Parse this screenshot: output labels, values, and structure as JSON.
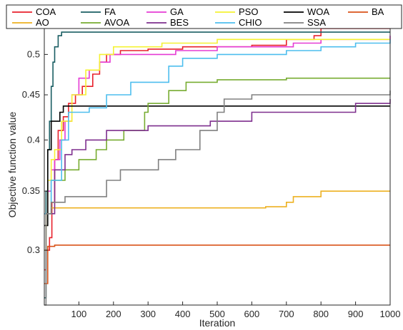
{
  "chart_data": {
    "type": "line",
    "xlabel": "Iteration",
    "ylabel": "Objective function value",
    "xlim": [
      0,
      1000
    ],
    "ylim": [
      0.26,
      0.54
    ],
    "y_scale": "log",
    "x_ticks": [
      100,
      200,
      300,
      400,
      500,
      600,
      700,
      800,
      900,
      1000
    ],
    "y_ticks": [
      0.3,
      0.35,
      0.4,
      0.45,
      0.5
    ],
    "grid": false,
    "legend_position": "top",
    "series": [
      {
        "name": "COA",
        "color": "#e8202b",
        "points": [
          [
            0,
            0.285
          ],
          [
            5,
            0.3
          ],
          [
            15,
            0.31
          ],
          [
            22,
            0.34
          ],
          [
            30,
            0.38
          ],
          [
            40,
            0.41
          ],
          [
            55,
            0.425
          ],
          [
            70,
            0.44
          ],
          [
            90,
            0.45
          ],
          [
            110,
            0.46
          ],
          [
            140,
            0.475
          ],
          [
            160,
            0.49
          ],
          [
            180,
            0.5
          ],
          [
            220,
            0.505
          ],
          [
            300,
            0.507
          ],
          [
            400,
            0.51
          ],
          [
            500,
            0.51
          ],
          [
            600,
            0.512
          ],
          [
            700,
            0.52
          ],
          [
            780,
            0.525
          ],
          [
            800,
            0.535
          ],
          [
            920,
            0.535
          ],
          [
            1000,
            0.54
          ]
        ]
      },
      {
        "name": "FA",
        "color": "#1a5e63",
        "points": [
          [
            0,
            0.265
          ],
          [
            5,
            0.35
          ],
          [
            10,
            0.39
          ],
          [
            15,
            0.42
          ],
          [
            20,
            0.46
          ],
          [
            25,
            0.49
          ],
          [
            30,
            0.51
          ],
          [
            40,
            0.525
          ],
          [
            50,
            0.53
          ],
          [
            1000,
            0.53
          ]
        ]
      },
      {
        "name": "GA",
        "color": "#e53bd4",
        "points": [
          [
            0,
            0.33
          ],
          [
            10,
            0.35
          ],
          [
            20,
            0.37
          ],
          [
            30,
            0.38
          ],
          [
            45,
            0.4
          ],
          [
            60,
            0.42
          ],
          [
            80,
            0.45
          ],
          [
            100,
            0.47
          ],
          [
            130,
            0.48
          ],
          [
            160,
            0.49
          ],
          [
            190,
            0.5
          ],
          [
            380,
            0.505
          ],
          [
            500,
            0.51
          ],
          [
            720,
            0.515
          ],
          [
            800,
            0.52
          ],
          [
            1000,
            0.525
          ]
        ]
      },
      {
        "name": "PSO",
        "color": "#f5f233",
        "points": [
          [
            0,
            0.33
          ],
          [
            10,
            0.36
          ],
          [
            20,
            0.38
          ],
          [
            30,
            0.39
          ],
          [
            50,
            0.42
          ],
          [
            80,
            0.45
          ],
          [
            120,
            0.48
          ],
          [
            160,
            0.5
          ],
          [
            200,
            0.51
          ],
          [
            340,
            0.515
          ],
          [
            500,
            0.52
          ],
          [
            1000,
            0.52
          ]
        ]
      },
      {
        "name": "WOA",
        "color": "#000000",
        "points": [
          [
            0,
            0.32
          ],
          [
            10,
            0.39
          ],
          [
            20,
            0.42
          ],
          [
            45,
            0.43
          ],
          [
            55,
            0.437
          ],
          [
            1000,
            0.437
          ]
        ]
      },
      {
        "name": "BA",
        "color": "#d95319",
        "points": [
          [
            0,
            0.275
          ],
          [
            10,
            0.303
          ],
          [
            30,
            0.304
          ],
          [
            1000,
            0.304
          ]
        ]
      },
      {
        "name": "AO",
        "color": "#edb120",
        "points": [
          [
            0,
            0.3
          ],
          [
            5,
            0.33
          ],
          [
            20,
            0.335
          ],
          [
            640,
            0.336
          ],
          [
            700,
            0.34
          ],
          [
            720,
            0.345
          ],
          [
            800,
            0.35
          ],
          [
            1000,
            0.35
          ]
        ]
      },
      {
        "name": "AVOA",
        "color": "#77ac30",
        "points": [
          [
            0,
            0.33
          ],
          [
            20,
            0.36
          ],
          [
            60,
            0.37
          ],
          [
            100,
            0.38
          ],
          [
            150,
            0.39
          ],
          [
            180,
            0.4
          ],
          [
            230,
            0.41
          ],
          [
            290,
            0.43
          ],
          [
            300,
            0.44
          ],
          [
            360,
            0.455
          ],
          [
            410,
            0.465
          ],
          [
            500,
            0.468
          ],
          [
            700,
            0.47
          ],
          [
            1000,
            0.47
          ]
        ]
      },
      {
        "name": "BES",
        "color": "#7e2f8e",
        "points": [
          [
            0,
            0.33
          ],
          [
            30,
            0.37
          ],
          [
            60,
            0.385
          ],
          [
            80,
            0.39
          ],
          [
            120,
            0.4
          ],
          [
            180,
            0.41
          ],
          [
            300,
            0.415
          ],
          [
            480,
            0.42
          ],
          [
            600,
            0.43
          ],
          [
            900,
            0.44
          ],
          [
            1000,
            0.445
          ]
        ]
      },
      {
        "name": "CHIO",
        "color": "#4dbeee",
        "points": [
          [
            0,
            0.33
          ],
          [
            20,
            0.36
          ],
          [
            50,
            0.4
          ],
          [
            70,
            0.43
          ],
          [
            130,
            0.435
          ],
          [
            180,
            0.45
          ],
          [
            250,
            0.465
          ],
          [
            360,
            0.485
          ],
          [
            400,
            0.495
          ],
          [
            500,
            0.5
          ],
          [
            700,
            0.505
          ],
          [
            800,
            0.51
          ],
          [
            900,
            0.515
          ],
          [
            1000,
            0.52
          ]
        ]
      },
      {
        "name": "SSA",
        "color": "#808080",
        "points": [
          [
            0,
            0.26
          ],
          [
            5,
            0.33
          ],
          [
            20,
            0.34
          ],
          [
            60,
            0.345
          ],
          [
            180,
            0.36
          ],
          [
            220,
            0.37
          ],
          [
            330,
            0.38
          ],
          [
            380,
            0.39
          ],
          [
            450,
            0.41
          ],
          [
            500,
            0.43
          ],
          [
            520,
            0.445
          ],
          [
            600,
            0.45
          ],
          [
            1000,
            0.455
          ]
        ]
      }
    ]
  }
}
